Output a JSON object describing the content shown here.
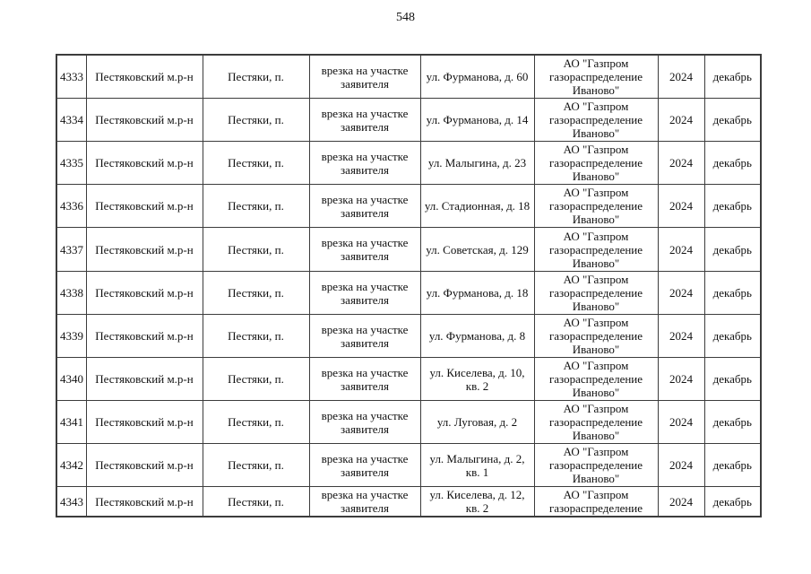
{
  "page": {
    "number": "548"
  },
  "table": {
    "rows": [
      {
        "number": "4333",
        "district": "Пестяковский м.р-н",
        "settlement": "Пестяки, п.",
        "work_type": "врезка на участке заявителя",
        "address": "ул. Фурманова, д. 60",
        "organization": "АО \"Газпром газораспределение Иваново\"",
        "year": "2024",
        "month": "декабрь"
      },
      {
        "number": "4334",
        "district": "Пестяковский м.р-н",
        "settlement": "Пестяки, п.",
        "work_type": "врезка на участке заявителя",
        "address": "ул. Фурманова, д. 14",
        "organization": "АО \"Газпром газораспределение Иваново\"",
        "year": "2024",
        "month": "декабрь"
      },
      {
        "number": "4335",
        "district": "Пестяковский м.р-н",
        "settlement": "Пестяки, п.",
        "work_type": "врезка на участке заявителя",
        "address": "ул. Малыгина, д. 23",
        "organization": "АО \"Газпром газораспределение Иваново\"",
        "year": "2024",
        "month": "декабрь"
      },
      {
        "number": "4336",
        "district": "Пестяковский м.р-н",
        "settlement": "Пестяки, п.",
        "work_type": "врезка на участке заявителя",
        "address": "ул. Стадионная, д. 18",
        "organization": "АО \"Газпром газораспределение Иваново\"",
        "year": "2024",
        "month": "декабрь"
      },
      {
        "number": "4337",
        "district": "Пестяковский м.р-н",
        "settlement": "Пестяки, п.",
        "work_type": "врезка на участке заявителя",
        "address": "ул. Советская, д. 129",
        "organization": "АО \"Газпром газораспределение Иваново\"",
        "year": "2024",
        "month": "декабрь"
      },
      {
        "number": "4338",
        "district": "Пестяковский м.р-н",
        "settlement": "Пестяки, п.",
        "work_type": "врезка на участке заявителя",
        "address": "ул. Фурманова, д. 18",
        "organization": "АО \"Газпром газораспределение Иваново\"",
        "year": "2024",
        "month": "декабрь"
      },
      {
        "number": "4339",
        "district": "Пестяковский м.р-н",
        "settlement": "Пестяки, п.",
        "work_type": "врезка на участке заявителя",
        "address": "ул. Фурманова, д. 8",
        "organization": "АО \"Газпром газораспределение Иваново\"",
        "year": "2024",
        "month": "декабрь"
      },
      {
        "number": "4340",
        "district": "Пестяковский м.р-н",
        "settlement": "Пестяки, п.",
        "work_type": "врезка на участке заявителя",
        "address": "ул. Киселева, д. 10, кв. 2",
        "organization": "АО \"Газпром газораспределение Иваново\"",
        "year": "2024",
        "month": "декабрь"
      },
      {
        "number": "4341",
        "district": "Пестяковский м.р-н",
        "settlement": "Пестяки, п.",
        "work_type": "врезка на участке заявителя",
        "address": "ул. Луговая, д. 2",
        "organization": "АО \"Газпром газораспределение Иваново\"",
        "year": "2024",
        "month": "декабрь"
      },
      {
        "number": "4342",
        "district": "Пестяковский м.р-н",
        "settlement": "Пестяки, п.",
        "work_type": "врезка на участке заявителя",
        "address": "ул. Малыгина, д. 2, кв. 1",
        "organization": "АО \"Газпром газораспределение Иваново\"",
        "year": "2024",
        "month": "декабрь"
      },
      {
        "number": "4343",
        "district": "Пестяковский м.р-н",
        "settlement": "Пестяки, п.",
        "work_type": "врезка на участке заявителя",
        "address": "ул. Киселева, д. 12, кв. 2",
        "organization": "АО \"Газпром газораспределение",
        "year": "2024",
        "month": "декабрь"
      }
    ]
  }
}
